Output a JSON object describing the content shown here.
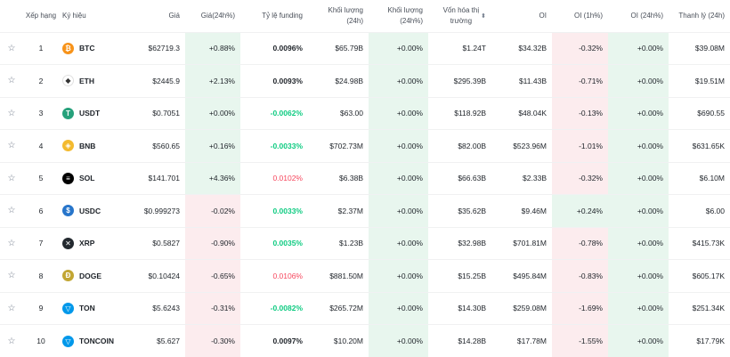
{
  "headers": {
    "rank": "Xếp hạng",
    "symbol": "Ký hiệu",
    "price": "Giá",
    "price_change": "Giá(24h%)",
    "funding": "Tỷ lệ funding",
    "volume": "Khối lượng (24h)",
    "volume_change": "Khối lượng (24h%)",
    "market_cap_line1": "Vốn hóa thị",
    "market_cap_line2": "trường",
    "oi": "OI",
    "oi_1h": "OI (1h%)",
    "oi_24h": "OI (24h%)",
    "liquidation": "Thanh lý (24h)"
  },
  "colors": {
    "up_text": "#0ecb81",
    "down_text": "#f6465d",
    "up_bg": "#e8f6ee",
    "down_bg": "#fcecee"
  },
  "rows": [
    {
      "rank": "1",
      "symbol": "BTC",
      "icon": "bitcoin-icon",
      "icon_color": "#f7931a",
      "icon_glyph": "₿",
      "price": "$62719.3",
      "price_change": "+0.88%",
      "price_dir": "up",
      "funding": "0.0096%",
      "funding_style": "neutral",
      "volume": "$65.79B",
      "volume_change": "+0.00%",
      "market_cap": "$1.24T",
      "oi": "$34.32B",
      "oi_1h": "-0.32%",
      "oi_1h_dir": "down",
      "oi_24h": "+0.00%",
      "liquidation": "$39.08M"
    },
    {
      "rank": "2",
      "symbol": "ETH",
      "icon": "ethereum-icon",
      "icon_color": "#ffffff",
      "icon_glyph": "◆",
      "price": "$2445.9",
      "price_change": "+2.13%",
      "price_dir": "up",
      "funding": "0.0093%",
      "funding_style": "neutral",
      "volume": "$24.98B",
      "volume_change": "+0.00%",
      "market_cap": "$295.39B",
      "oi": "$11.43B",
      "oi_1h": "-0.71%",
      "oi_1h_dir": "down",
      "oi_24h": "+0.00%",
      "liquidation": "$19.51M"
    },
    {
      "rank": "3",
      "symbol": "USDT",
      "icon": "tether-icon",
      "icon_color": "#26a17b",
      "icon_glyph": "T",
      "price": "$0.7051",
      "price_change": "+0.00%",
      "price_dir": "up",
      "funding": "-0.0062%",
      "funding_style": "up",
      "volume": "$63.00",
      "volume_change": "+0.00%",
      "market_cap": "$118.92B",
      "oi": "$48.04K",
      "oi_1h": "-0.13%",
      "oi_1h_dir": "down",
      "oi_24h": "+0.00%",
      "liquidation": "$690.55"
    },
    {
      "rank": "4",
      "symbol": "BNB",
      "icon": "bnb-icon",
      "icon_color": "#f3ba2f",
      "icon_glyph": "◈",
      "price": "$560.65",
      "price_change": "+0.16%",
      "price_dir": "up",
      "funding": "-0.0033%",
      "funding_style": "up",
      "volume": "$702.73M",
      "volume_change": "+0.00%",
      "market_cap": "$82.00B",
      "oi": "$523.96M",
      "oi_1h": "-1.01%",
      "oi_1h_dir": "down",
      "oi_24h": "+0.00%",
      "liquidation": "$631.65K"
    },
    {
      "rank": "5",
      "symbol": "SOL",
      "icon": "solana-icon",
      "icon_color": "#000000",
      "icon_glyph": "≡",
      "price": "$141.701",
      "price_change": "+4.36%",
      "price_dir": "up",
      "funding": "0.0102%",
      "funding_style": "down",
      "volume": "$6.38B",
      "volume_change": "+0.00%",
      "market_cap": "$66.63B",
      "oi": "$2.33B",
      "oi_1h": "-0.32%",
      "oi_1h_dir": "down",
      "oi_24h": "+0.00%",
      "liquidation": "$6.10M"
    },
    {
      "rank": "6",
      "symbol": "USDC",
      "icon": "usdc-icon",
      "icon_color": "#2775ca",
      "icon_glyph": "$",
      "price": "$0.999273",
      "price_change": "-0.02%",
      "price_dir": "down",
      "funding": "0.0033%",
      "funding_style": "up",
      "volume": "$2.37M",
      "volume_change": "+0.00%",
      "market_cap": "$35.62B",
      "oi": "$9.46M",
      "oi_1h": "+0.24%",
      "oi_1h_dir": "up",
      "oi_24h": "+0.00%",
      "liquidation": "$6.00"
    },
    {
      "rank": "7",
      "symbol": "XRP",
      "icon": "xrp-icon",
      "icon_color": "#23292f",
      "icon_glyph": "✕",
      "price": "$0.5827",
      "price_change": "-0.90%",
      "price_dir": "down",
      "funding": "0.0035%",
      "funding_style": "up",
      "volume": "$1.23B",
      "volume_change": "+0.00%",
      "market_cap": "$32.98B",
      "oi": "$701.81M",
      "oi_1h": "-0.78%",
      "oi_1h_dir": "down",
      "oi_24h": "+0.00%",
      "liquidation": "$415.73K"
    },
    {
      "rank": "8",
      "symbol": "DOGE",
      "icon": "dogecoin-icon",
      "icon_color": "#c2a633",
      "icon_glyph": "Ð",
      "price": "$0.10424",
      "price_change": "-0.65%",
      "price_dir": "down",
      "funding": "0.0106%",
      "funding_style": "down",
      "volume": "$881.50M",
      "volume_change": "+0.00%",
      "market_cap": "$15.25B",
      "oi": "$495.84M",
      "oi_1h": "-0.83%",
      "oi_1h_dir": "down",
      "oi_24h": "+0.00%",
      "liquidation": "$605.17K"
    },
    {
      "rank": "9",
      "symbol": "TON",
      "icon": "toncoin-icon",
      "icon_color": "#0098ea",
      "icon_glyph": "▽",
      "price": "$5.6243",
      "price_change": "-0.31%",
      "price_dir": "down",
      "funding": "-0.0082%",
      "funding_style": "up",
      "volume": "$265.72M",
      "volume_change": "+0.00%",
      "market_cap": "$14.30B",
      "oi": "$259.08M",
      "oi_1h": "-1.69%",
      "oi_1h_dir": "down",
      "oi_24h": "+0.00%",
      "liquidation": "$251.34K"
    },
    {
      "rank": "10",
      "symbol": "TONCOIN",
      "icon": "toncoin-icon",
      "icon_color": "#0098ea",
      "icon_glyph": "▽",
      "price": "$5.627",
      "price_change": "-0.30%",
      "price_dir": "down",
      "funding": "0.0097%",
      "funding_style": "neutral",
      "volume": "$10.20M",
      "volume_change": "+0.00%",
      "market_cap": "$14.28B",
      "oi": "$17.78M",
      "oi_1h": "-1.55%",
      "oi_1h_dir": "down",
      "oi_24h": "+0.00%",
      "liquidation": "$17.79K"
    }
  ]
}
